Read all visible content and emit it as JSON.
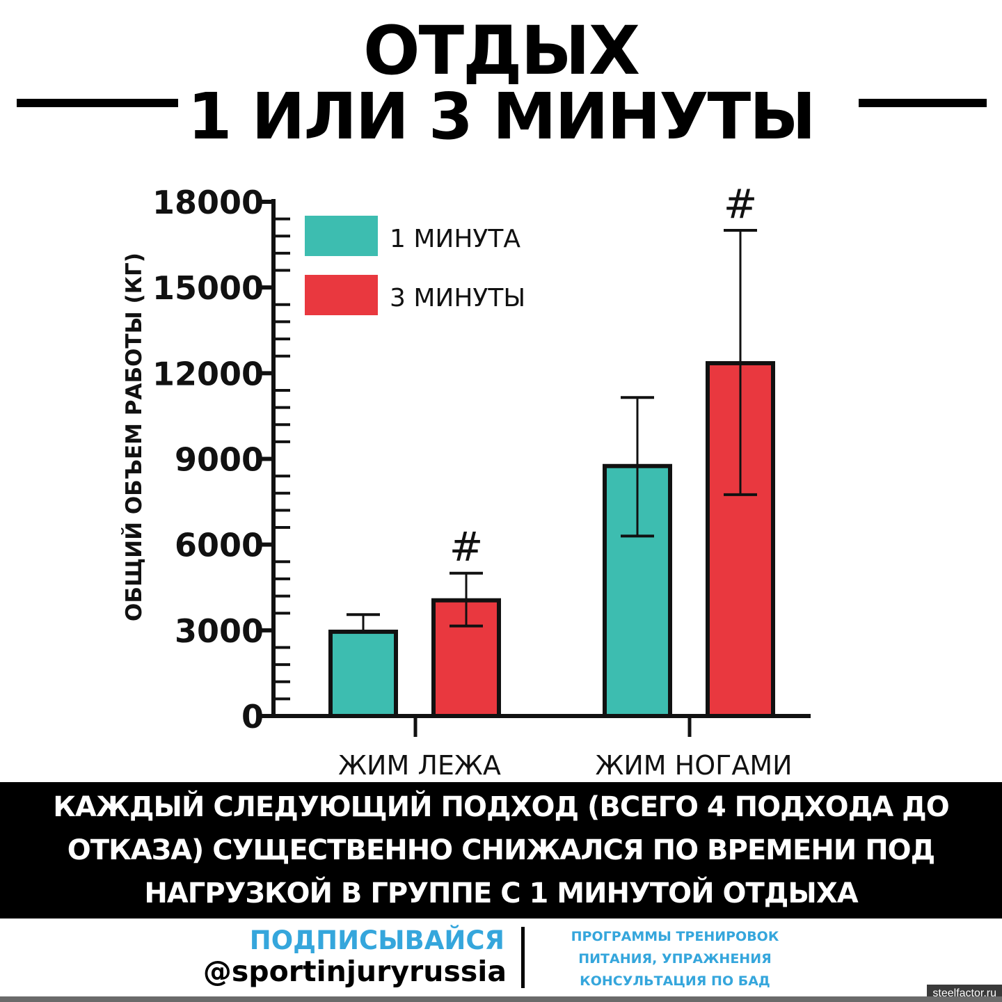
{
  "header": {
    "title_line1": "ОТДЫХ",
    "title_line2": "1 ИЛИ 3 МИНУТЫ"
  },
  "chart_data": {
    "type": "bar",
    "categories": [
      "ЖИМ ЛЕЖА",
      "ЖИМ НОГАМИ"
    ],
    "series": [
      {
        "name": "1 МИНУТА",
        "color": "#3dbdb0",
        "values": [
          2950,
          8750
        ],
        "error_low": [
          2950,
          6300
        ],
        "error_high": [
          3550,
          11150
        ],
        "marks": [
          "",
          ""
        ]
      },
      {
        "name": "3 МИНУТЫ",
        "color": "#e9383f",
        "values": [
          4050,
          12350
        ],
        "error_low": [
          3150,
          7750
        ],
        "error_high": [
          5000,
          17000
        ],
        "marks": [
          "#",
          "#"
        ]
      }
    ],
    "ylabel": "ОБЩИЙ ОБЪЕМ РАБОТЫ (КГ)",
    "yticks": [
      0,
      3000,
      6000,
      9000,
      12000,
      15000,
      18000
    ],
    "ylim": [
      0,
      18000
    ],
    "legend_position": "top-left",
    "grid": false
  },
  "banner": {
    "line1": "КАЖДЫЙ СЛЕДУЮЩИЙ ПОДХОД (ВСЕГО 4 ПОДХОДА ДО",
    "line2": "ОТКАЗА) СУЩЕСТВЕННО СНИЖАЛСЯ ПО ВРЕМЕНИ ПОД",
    "line3": "НАГРУЗКОЙ В ГРУППЕ С 1 МИНУТОЙ ОТДЫХА"
  },
  "footer": {
    "subscribe": "ПОДПИСЫВАЙСЯ",
    "handle": "@sportinjuryrussia",
    "services_line1": "ПРОГРАММЫ ТРЕНИРОВОК",
    "services_line2": "ПИТАНИЯ, УПРАЖНЕНИЯ",
    "services_line3": "КОНСУЛЬТАЦИЯ ПО БАД",
    "accent_color": "#35a6dc"
  },
  "watermark": "steelfactor.ru"
}
